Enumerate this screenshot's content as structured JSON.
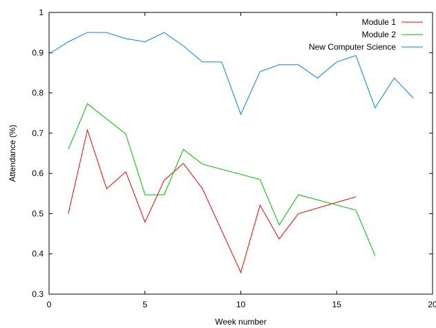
{
  "chart_data": {
    "type": "line",
    "title": "",
    "xlabel": "Week number",
    "ylabel": "Attendance (%)",
    "xlim": [
      0,
      20
    ],
    "ylim": [
      0.3,
      1
    ],
    "xticks": [
      "0",
      "5",
      "10",
      "15",
      "20"
    ],
    "yticks": [
      "0.3",
      "0.4",
      "0.5",
      "0.6",
      "0.7",
      "0.8",
      "0.9",
      "1"
    ],
    "grid": false,
    "legend_position": "top-right",
    "series": [
      {
        "name": "Module 1",
        "color": "#ff0000",
        "x": [
          1,
          2,
          3,
          4,
          5,
          6,
          7,
          8,
          10,
          11,
          12,
          13,
          16
        ],
        "y": [
          0.5,
          0.708,
          0.562,
          0.604,
          0.479,
          0.583,
          0.625,
          0.562,
          0.354,
          0.521,
          0.437,
          0.5,
          0.542
        ]
      },
      {
        "name": "Module 2",
        "color": "#00c000",
        "x": [
          1,
          2,
          4,
          5,
          6,
          7,
          8,
          11,
          12,
          13,
          16,
          17
        ],
        "y": [
          0.66,
          0.773,
          0.698,
          0.547,
          0.547,
          0.66,
          0.623,
          0.585,
          0.472,
          0.547,
          0.509,
          0.396
        ]
      },
      {
        "name": "New Computer Science",
        "color": "#0080ff",
        "x": [
          0,
          1,
          2,
          3,
          4,
          5,
          6,
          7,
          8,
          9,
          10,
          11,
          12,
          13,
          14,
          15,
          16,
          17,
          18,
          19
        ],
        "y": [
          0.897,
          0.927,
          0.95,
          0.95,
          0.935,
          0.927,
          0.95,
          0.917,
          0.877,
          0.877,
          0.747,
          0.853,
          0.87,
          0.87,
          0.837,
          0.877,
          0.893,
          0.763,
          0.837,
          0.787
        ]
      }
    ]
  }
}
